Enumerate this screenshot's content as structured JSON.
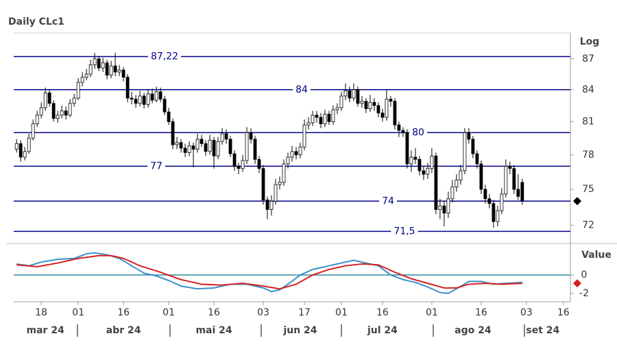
{
  "chart_data": [
    {
      "type": "candlestick",
      "title": "Daily CLc1",
      "ylabel": "Log",
      "log_scale": true,
      "up_color": "#ffffff",
      "down_color": "#000000",
      "level_color": "#00008b",
      "xlim": [
        -0.7,
        134.7
      ],
      "ylim": [
        70.8,
        89.6
      ],
      "yticks": [
        72,
        75,
        78,
        81,
        84,
        87
      ],
      "levels": [
        {
          "value": 87.22,
          "label": "87,22"
        },
        84,
        80,
        77,
        74,
        {
          "value": 71.5,
          "label": "71,5"
        }
      ],
      "ohlc": [
        [
          78.5,
          79.4,
          78.2,
          79.0
        ],
        [
          79.0,
          79.3,
          77.4,
          77.8
        ],
        [
          77.8,
          78.7,
          77.5,
          78.3
        ],
        [
          78.3,
          79.9,
          78.1,
          79.5
        ],
        [
          79.5,
          81.2,
          79.3,
          80.8
        ],
        [
          80.8,
          82.0,
          80.5,
          81.6
        ],
        [
          81.6,
          82.8,
          81.3,
          82.3
        ],
        [
          82.3,
          84.2,
          82.0,
          83.7
        ],
        [
          83.7,
          84.0,
          82.4,
          82.7
        ],
        [
          82.7,
          83.0,
          81.0,
          81.3
        ],
        [
          81.3,
          82.0,
          80.9,
          81.6
        ],
        [
          81.6,
          82.5,
          81.3,
          82.0
        ],
        [
          82.0,
          82.4,
          81.2,
          81.6
        ],
        [
          81.6,
          83.1,
          81.4,
          82.7
        ],
        [
          82.7,
          83.6,
          82.4,
          83.2
        ],
        [
          83.2,
          85.1,
          83.0,
          84.7
        ],
        [
          84.7,
          85.7,
          84.3,
          85.2
        ],
        [
          85.2,
          86.0,
          84.9,
          85.5
        ],
        [
          85.5,
          86.9,
          85.2,
          86.4
        ],
        [
          86.4,
          87.6,
          86.0,
          87.0
        ],
        [
          87.0,
          87.3,
          85.8,
          86.1
        ],
        [
          86.1,
          87.1,
          85.7,
          86.6
        ],
        [
          86.6,
          86.9,
          85.0,
          85.4
        ],
        [
          85.4,
          86.8,
          85.1,
          86.3
        ],
        [
          86.3,
          87.6,
          85.3,
          85.7
        ],
        [
          85.7,
          86.4,
          85.3,
          85.9
        ],
        [
          85.9,
          86.2,
          84.8,
          85.2
        ],
        [
          85.2,
          85.5,
          82.8,
          83.2
        ],
        [
          83.2,
          83.8,
          82.6,
          83.1
        ],
        [
          83.1,
          83.5,
          82.3,
          82.7
        ],
        [
          82.7,
          83.9,
          82.4,
          83.4
        ],
        [
          83.4,
          83.7,
          82.2,
          82.6
        ],
        [
          82.6,
          84.0,
          82.3,
          83.6
        ],
        [
          83.6,
          84.1,
          82.7,
          83.0
        ],
        [
          83.0,
          84.3,
          82.8,
          83.8
        ],
        [
          83.8,
          84.2,
          82.8,
          83.1
        ],
        [
          83.1,
          83.4,
          81.6,
          81.9
        ],
        [
          81.9,
          82.3,
          80.7,
          81.0
        ],
        [
          81.0,
          81.3,
          78.5,
          78.9
        ],
        [
          78.9,
          79.6,
          78.5,
          79.1
        ],
        [
          79.1,
          79.4,
          78.2,
          78.6
        ],
        [
          78.6,
          79.0,
          77.8,
          78.2
        ],
        [
          78.2,
          79.2,
          77.9,
          78.8
        ],
        [
          78.8,
          79.1,
          76.9,
          78.5
        ],
        [
          78.5,
          79.9,
          78.2,
          79.4
        ],
        [
          79.4,
          79.8,
          78.7,
          79.0
        ],
        [
          79.0,
          79.3,
          77.9,
          78.3
        ],
        [
          78.3,
          79.8,
          78.0,
          79.3
        ],
        [
          79.3,
          79.6,
          76.8,
          77.9
        ],
        [
          77.9,
          79.6,
          77.6,
          79.2
        ],
        [
          79.2,
          80.4,
          78.9,
          79.9
        ],
        [
          79.9,
          80.3,
          79.0,
          79.4
        ],
        [
          79.4,
          79.7,
          77.8,
          78.1
        ],
        [
          78.1,
          78.4,
          76.6,
          77.0
        ],
        [
          77.0,
          77.3,
          76.3,
          76.8
        ],
        [
          76.8,
          78.0,
          76.5,
          77.5
        ],
        [
          77.5,
          80.5,
          77.2,
          80.0
        ],
        [
          80.0,
          80.4,
          79.0,
          79.4
        ],
        [
          79.4,
          79.7,
          77.2,
          77.6
        ],
        [
          77.6,
          77.9,
          76.4,
          76.8
        ],
        [
          76.8,
          77.1,
          73.7,
          74.1
        ],
        [
          74.1,
          74.4,
          72.5,
          73.3
        ],
        [
          73.3,
          74.5,
          72.8,
          74.0
        ],
        [
          74.0,
          75.9,
          73.7,
          75.4
        ],
        [
          75.4,
          76.1,
          75.0,
          75.6
        ],
        [
          75.6,
          77.6,
          75.3,
          77.2
        ],
        [
          77.2,
          78.2,
          76.8,
          77.8
        ],
        [
          77.8,
          78.8,
          77.4,
          78.3
        ],
        [
          78.3,
          78.7,
          77.6,
          78.0
        ],
        [
          78.0,
          79.1,
          77.7,
          78.7
        ],
        [
          78.7,
          81.2,
          78.4,
          80.7
        ],
        [
          80.7,
          81.4,
          80.3,
          80.9
        ],
        [
          80.9,
          82.0,
          80.6,
          81.6
        ],
        [
          81.6,
          82.0,
          80.9,
          81.4
        ],
        [
          81.4,
          81.8,
          80.4,
          80.8
        ],
        [
          80.8,
          82.1,
          80.5,
          81.7
        ],
        [
          81.7,
          82.0,
          80.7,
          81.0
        ],
        [
          81.0,
          82.5,
          80.7,
          82.1
        ],
        [
          82.1,
          82.7,
          81.7,
          82.3
        ],
        [
          82.3,
          83.8,
          82.0,
          83.4
        ],
        [
          83.4,
          84.6,
          83.0,
          83.9
        ],
        [
          83.9,
          84.3,
          82.8,
          83.2
        ],
        [
          83.2,
          84.6,
          82.9,
          84.0
        ],
        [
          84.0,
          84.3,
          82.4,
          82.7
        ],
        [
          82.7,
          83.4,
          82.3,
          82.9
        ],
        [
          82.9,
          83.2,
          81.8,
          82.2
        ],
        [
          82.2,
          83.5,
          81.9,
          82.8
        ],
        [
          82.8,
          83.2,
          82.0,
          82.5
        ],
        [
          82.5,
          82.8,
          81.4,
          81.8
        ],
        [
          81.8,
          82.2,
          81.0,
          81.4
        ],
        [
          81.4,
          84.0,
          81.1,
          83.1
        ],
        [
          83.1,
          83.4,
          82.4,
          82.9
        ],
        [
          82.9,
          83.2,
          80.3,
          80.7
        ],
        [
          80.7,
          81.0,
          79.6,
          80.2
        ],
        [
          80.2,
          80.5,
          79.6,
          80.0
        ],
        [
          80.0,
          80.3,
          76.8,
          77.2
        ],
        [
          77.2,
          78.4,
          76.5,
          77.8
        ],
        [
          77.8,
          78.6,
          77.2,
          77.6
        ],
        [
          77.6,
          77.9,
          76.2,
          76.6
        ],
        [
          76.6,
          77.0,
          75.8,
          76.3
        ],
        [
          76.3,
          77.3,
          75.9,
          76.8
        ],
        [
          76.8,
          78.6,
          76.4,
          77.9
        ],
        [
          77.9,
          78.2,
          72.9,
          73.3
        ],
        [
          73.3,
          74.2,
          72.5,
          73.6
        ],
        [
          73.6,
          74.0,
          71.9,
          73.0
        ],
        [
          73.0,
          74.8,
          72.6,
          74.2
        ],
        [
          74.2,
          75.8,
          73.9,
          75.2
        ],
        [
          75.2,
          76.3,
          74.8,
          75.8
        ],
        [
          75.8,
          77.1,
          75.4,
          76.6
        ],
        [
          76.6,
          80.4,
          76.3,
          80.0
        ],
        [
          80.0,
          80.4,
          79.0,
          79.4
        ],
        [
          79.4,
          79.7,
          77.7,
          78.1
        ],
        [
          78.1,
          78.4,
          76.8,
          77.2
        ],
        [
          77.2,
          77.5,
          74.6,
          75.0
        ],
        [
          75.0,
          75.4,
          73.8,
          74.2
        ],
        [
          74.2,
          74.6,
          73.4,
          73.8
        ],
        [
          73.8,
          74.1,
          71.8,
          72.3
        ],
        [
          72.3,
          73.6,
          71.9,
          73.2
        ],
        [
          73.2,
          75.1,
          72.9,
          74.6
        ],
        [
          74.6,
          77.6,
          74.3,
          77.0
        ],
        [
          77.0,
          77.4,
          76.3,
          76.8
        ],
        [
          76.8,
          77.1,
          74.6,
          75.0
        ],
        [
          75.0,
          76.3,
          74.1,
          74.4
        ],
        [
          75.6,
          75.9,
          73.7,
          74.0
        ]
      ]
    },
    {
      "type": "line",
      "ylabel": "Value",
      "zero_color": "#2e8ba0",
      "xlim": [
        -0.7,
        134.7
      ],
      "ylim": [
        -2.9,
        3.2
      ],
      "yticks": [
        0,
        -2
      ],
      "xticks": [
        {
          "value": 6,
          "label": "18"
        },
        {
          "value": 15,
          "label": "01"
        },
        {
          "value": 26,
          "label": "16"
        },
        {
          "value": 37,
          "label": "01"
        },
        {
          "value": 48,
          "label": "16"
        },
        {
          "value": 60,
          "label": "03"
        },
        {
          "value": 70,
          "label": "17"
        },
        {
          "value": 79,
          "label": "01"
        },
        {
          "value": 89,
          "label": "16"
        },
        {
          "value": 101,
          "label": "01"
        },
        {
          "value": 113,
          "label": "16"
        },
        {
          "value": 124,
          "label": "03"
        },
        {
          "value": 133,
          "label": "16"
        }
      ],
      "month_labels": [
        {
          "value": 7,
          "label": "mar 24"
        },
        {
          "value": 26,
          "label": "abr 24"
        },
        {
          "value": 48,
          "label": "mai 24"
        },
        {
          "value": 69,
          "label": "jun 24"
        },
        {
          "value": 89,
          "label": "jul 24"
        },
        {
          "value": 111,
          "label": "ago 24"
        },
        {
          "value": 128,
          "label": "set 24"
        }
      ],
      "series": [
        {
          "color": "#3a8fc8",
          "values": [
            1.2,
            1.13,
            1.07,
            1.0,
            1.13,
            1.27,
            1.4,
            1.48,
            1.55,
            1.63,
            1.7,
            1.73,
            1.75,
            1.78,
            1.8,
            1.97,
            2.13,
            2.3,
            2.35,
            2.4,
            2.33,
            2.27,
            2.2,
            2.07,
            1.93,
            1.8,
            1.53,
            1.27,
            1.0,
            0.73,
            0.47,
            0.2,
            0.1,
            0.0,
            -0.1,
            -0.27,
            -0.43,
            -0.6,
            -0.8,
            -1.0,
            -1.2,
            -1.28,
            -1.35,
            -1.43,
            -1.5,
            -1.48,
            -1.45,
            -1.43,
            -1.4,
            -1.3,
            -1.2,
            -1.1,
            -1.0,
            -1.0,
            -1.0,
            -1.0,
            -1.0,
            -1.1,
            -1.2,
            -1.3,
            -1.4,
            -1.6,
            -1.8,
            -1.7,
            -1.6,
            -1.3,
            -1.0,
            -0.67,
            -0.33,
            0.0,
            0.2,
            0.4,
            0.6,
            0.7,
            0.8,
            0.9,
            1.0,
            1.1,
            1.2,
            1.3,
            1.4,
            1.5,
            1.6,
            1.5,
            1.4,
            1.3,
            1.2,
            1.1,
            1.0,
            0.67,
            0.33,
            0.0,
            -0.17,
            -0.33,
            -0.5,
            -0.6,
            -0.7,
            -0.8,
            -0.97,
            -1.13,
            -1.3,
            -1.5,
            -1.7,
            -1.9,
            -1.95,
            -2.0,
            -1.75,
            -1.5,
            -1.23,
            -0.97,
            -0.7,
            -0.7,
            -0.7,
            -0.7,
            -0.8,
            -0.9,
            -1.0,
            -0.97,
            -0.93,
            -0.9,
            -0.88,
            -0.85,
            -0.83,
            -0.8
          ]
        },
        {
          "color": "#d62020",
          "values": [
            1.1,
            1.06,
            1.02,
            0.98,
            0.94,
            0.9,
            0.98,
            1.06,
            1.14,
            1.22,
            1.3,
            1.4,
            1.5,
            1.6,
            1.7,
            1.8,
            1.86,
            1.92,
            1.98,
            2.04,
            2.1,
            2.1,
            2.1,
            2.1,
            2.0,
            1.9,
            1.8,
            1.6,
            1.4,
            1.2,
            1.0,
            0.86,
            0.72,
            0.58,
            0.44,
            0.3,
            0.14,
            -0.02,
            -0.18,
            -0.34,
            -0.5,
            -0.6,
            -0.7,
            -0.8,
            -0.9,
            -1.0,
            -1.02,
            -1.04,
            -1.06,
            -1.08,
            -1.1,
            -1.06,
            -1.02,
            -0.98,
            -0.94,
            -0.9,
            -0.96,
            -1.02,
            -1.08,
            -1.14,
            -1.2,
            -1.28,
            -1.35,
            -1.43,
            -1.5,
            -1.38,
            -1.25,
            -1.13,
            -1.0,
            -0.75,
            -0.5,
            -0.25,
            0.0,
            0.15,
            0.3,
            0.45,
            0.6,
            0.7,
            0.8,
            0.9,
            1.0,
            1.05,
            1.1,
            1.15,
            1.2,
            1.18,
            1.15,
            1.13,
            1.1,
            0.9,
            0.7,
            0.5,
            0.3,
            0.13,
            -0.05,
            -0.23,
            -0.4,
            -0.53,
            -0.65,
            -0.78,
            -0.9,
            -1.03,
            -1.15,
            -1.28,
            -1.4,
            -1.4,
            -1.4,
            -1.4,
            -1.27,
            -1.13,
            -1.0,
            -0.98,
            -0.95,
            -0.93,
            -0.9,
            -0.93,
            -0.95,
            -0.98,
            -1.0,
            -0.98,
            -0.96,
            -0.94,
            -0.92,
            -0.9
          ]
        }
      ]
    }
  ]
}
